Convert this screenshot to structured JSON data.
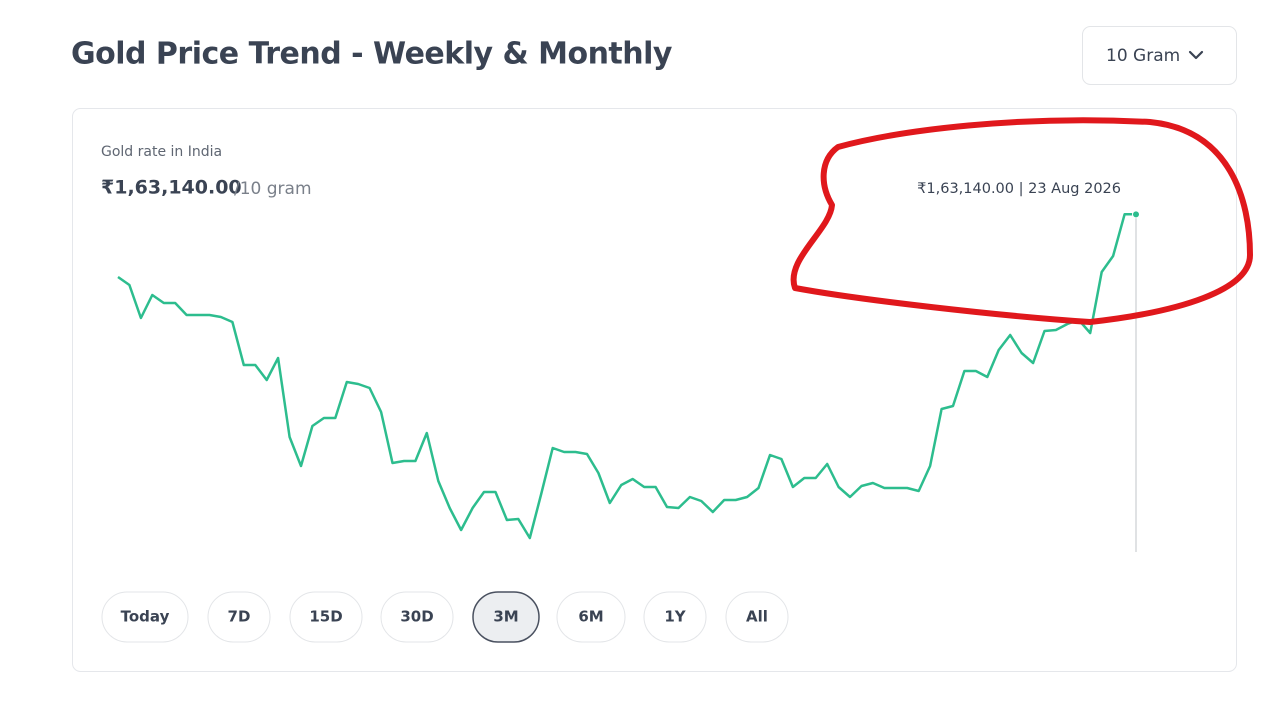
{
  "header": {
    "title": "Gold Price Trend - Weekly & Monthly",
    "unit_selector": "10 Gram"
  },
  "card": {
    "label": "Gold rate in India",
    "price": "₹1,63,140.00",
    "price_unit": "/10 gram",
    "tooltip": "₹1,63,140.00 | 23 Aug 2026"
  },
  "chart_data": {
    "type": "line",
    "color": "#2dbd8e",
    "ylim": [
      143000,
      164000
    ],
    "values": [
      159380,
      158900,
      156920,
      158300,
      157820,
      157820,
      157100,
      157100,
      157100,
      156980,
      156680,
      154100,
      154100,
      153200,
      154520,
      149780,
      148040,
      150440,
      150920,
      150920,
      153080,
      152960,
      152720,
      151280,
      148220,
      148340,
      148340,
      150020,
      147140,
      145520,
      144200,
      145520,
      146480,
      146480,
      144800,
      144860,
      143720,
      146360,
      149120,
      148880,
      148880,
      148760,
      147620,
      145820,
      146900,
      147260,
      146780,
      146780,
      145580,
      145520,
      146180,
      145940,
      145280,
      146000,
      146000,
      146180,
      146720,
      148700,
      148460,
      146780,
      147320,
      147320,
      148160,
      146780,
      146180,
      146840,
      147020,
      146720,
      146720,
      146720,
      146540,
      148040,
      151460,
      151640,
      153740,
      153740,
      153380,
      155000,
      155900,
      154820,
      154220,
      156140,
      156200,
      156560,
      156800,
      156020,
      159680,
      160640,
      163140,
      163140
    ]
  },
  "range_buttons": [
    {
      "label": "Today",
      "active": false
    },
    {
      "label": "7D",
      "active": false
    },
    {
      "label": "15D",
      "active": false
    },
    {
      "label": "30D",
      "active": false
    },
    {
      "label": "3M",
      "active": true
    },
    {
      "label": "6M",
      "active": false
    },
    {
      "label": "1Y",
      "active": false
    },
    {
      "label": "All",
      "active": false
    }
  ]
}
